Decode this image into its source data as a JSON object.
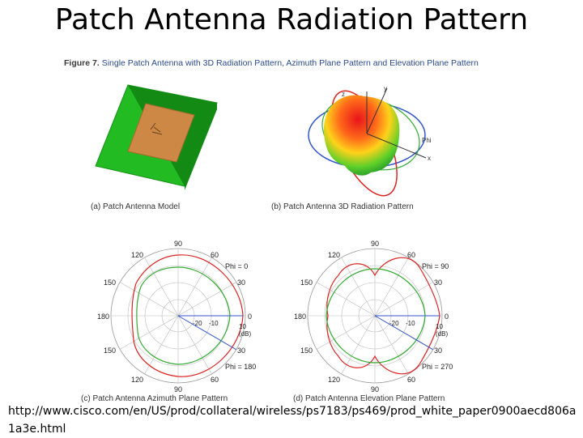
{
  "slide": {
    "title": "Patch Antenna Radiation Pattern",
    "source_url": "http://www.cisco.com/en/US/prod/collateral/wireless/ps7183/ps469/prod_white_paper0900aecd806a1a3e.html"
  },
  "figure": {
    "number": "Figure 7.",
    "caption": "Single Patch Antenna with 3D Radiation Pattern, Azimuth Plane Pattern and Elevation Plane Pattern",
    "panels": {
      "a": "(a) Patch Antenna Model",
      "b": "(b) Patch Antenna 3D Radiation Pattern",
      "c": "(c) Patch Antenna Azimuth Plane Pattern",
      "d": "(d) Patch Antenna Elevation Plane Pattern"
    },
    "axes_3d": {
      "z": "z",
      "y": "y",
      "x": "x",
      "phi": "Phi"
    },
    "azimuth": {
      "angle_labels": [
        "90",
        "60",
        "30",
        "0",
        "30",
        "60",
        "90",
        "120",
        "150",
        "180",
        "150",
        "120"
      ],
      "radial_labels": [
        "-20",
        "-10",
        "10",
        "(dB)"
      ],
      "phi_top": "Phi = 0",
      "phi_bottom": "Phi = 180"
    },
    "elevation": {
      "angle_labels": [
        "90",
        "60",
        "30",
        "0",
        "30",
        "60",
        "90",
        "120",
        "150",
        "180",
        "150",
        "120"
      ],
      "radial_labels": [
        "-20",
        "-10",
        "10",
        "(dB)"
      ],
      "phi_top": "Phi = 90",
      "phi_bottom": "Phi = 270"
    },
    "colors": {
      "red_trace": "#dd2222",
      "green_trace": "#33aa33",
      "blue_axis": "#3355cc",
      "substrate": "#22bb22",
      "patch": "#cc8844"
    }
  }
}
